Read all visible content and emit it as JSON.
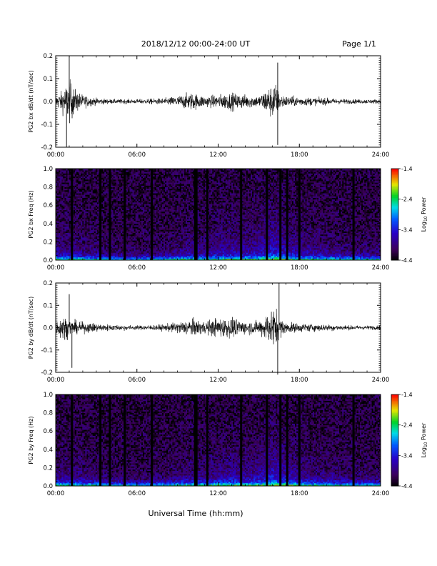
{
  "header": {
    "title": "2018/12/12  00:00-24:00 UT",
    "page": "Page 1/1"
  },
  "chart_data": [
    {
      "type": "line",
      "panel": "bx-waveform",
      "title": "",
      "ylabel": "PG2 bx dB/dt (nT/sec)",
      "xlabel": "",
      "xlim": [
        "00:00",
        "24:00"
      ],
      "ylim": [
        -0.2,
        0.2
      ],
      "xticks": [
        "00:00",
        "06:00",
        "12:00",
        "18:00",
        "24:00"
      ],
      "yticks": [
        "-0.2",
        "-0.1",
        "0.0",
        "0.1",
        "0.2"
      ],
      "x_hours": [
        0,
        0.5,
        1.0,
        1.5,
        2.0,
        3.0,
        4.0,
        6.0,
        8.0,
        9.0,
        10.0,
        11.0,
        12.0,
        13.0,
        14.0,
        15.0,
        16.2,
        16.5,
        17.0,
        18.0,
        20.0,
        22.0,
        24.0
      ],
      "amplitude_envelope": [
        0.05,
        0.1,
        0.2,
        0.1,
        0.06,
        0.03,
        0.02,
        0.02,
        0.03,
        0.05,
        0.08,
        0.05,
        0.06,
        0.08,
        0.06,
        0.05,
        0.18,
        0.08,
        0.05,
        0.04,
        0.03,
        0.02,
        0.02
      ],
      "notable_values": [
        {
          "x_hours": 1.0,
          "y": 0.2
        },
        {
          "x_hours": 0.8,
          "y": -0.2
        },
        {
          "x_hours": 16.4,
          "y": 0.17
        },
        {
          "x_hours": 16.4,
          "y": -0.19
        }
      ]
    },
    {
      "type": "heatmap",
      "panel": "bx-spectrogram",
      "title": "",
      "ylabel": "PG2 bx Freq (Hz)",
      "xlabel": "",
      "xlim": [
        "00:00",
        "24:00"
      ],
      "ylim": [
        0.0,
        1.0
      ],
      "xticks": [
        "00:00",
        "06:00",
        "12:00",
        "18:00",
        "24:00"
      ],
      "yticks": [
        "0.0",
        "0.2",
        "0.4",
        "0.6",
        "0.8",
        "1.0"
      ],
      "colorbar": {
        "label": "Log10 Power",
        "label_main": "Log",
        "label_sub": "10",
        "label_tail": " Power",
        "range": [
          -4.4,
          -1.4
        ],
        "ticks": [
          "-1.4",
          "-2.4",
          "-3.4",
          "-4.4"
        ]
      },
      "data_gaps_hours": [
        1.2,
        3.3,
        4.0,
        5.1,
        7.1,
        10.3,
        10.4,
        11.2,
        13.7,
        15.6,
        16.6,
        17.1,
        18.0,
        22.0
      ],
      "activity_envelope_hours": [
        0,
        2,
        4,
        6,
        8,
        9,
        10,
        11,
        12,
        13,
        14,
        15,
        16,
        17,
        18,
        20,
        22,
        24
      ],
      "activity_envelope": [
        0.3,
        0.25,
        0.15,
        0.12,
        0.15,
        0.25,
        0.3,
        0.28,
        0.35,
        0.4,
        0.35,
        0.4,
        0.55,
        0.45,
        0.35,
        0.25,
        0.2,
        0.18
      ]
    },
    {
      "type": "line",
      "panel": "by-waveform",
      "title": "",
      "ylabel": "PG2 by dB/dt (nT/sec)",
      "xlabel": "",
      "xlim": [
        "00:00",
        "24:00"
      ],
      "ylim": [
        -0.2,
        0.2
      ],
      "xticks": [
        "00:00",
        "06:00",
        "12:00",
        "18:00",
        "24:00"
      ],
      "yticks": [
        "-0.2",
        "-0.1",
        "0.0",
        "0.1",
        "0.2"
      ],
      "x_hours": [
        0,
        0.5,
        1.0,
        1.5,
        2.0,
        3.0,
        4.0,
        6.0,
        8.0,
        9.0,
        10.0,
        11.0,
        12.0,
        13.0,
        14.0,
        15.0,
        16.2,
        16.5,
        17.0,
        18.0,
        20.0,
        22.0,
        24.0
      ],
      "amplitude_envelope": [
        0.05,
        0.12,
        0.08,
        0.06,
        0.05,
        0.04,
        0.03,
        0.02,
        0.03,
        0.05,
        0.08,
        0.06,
        0.09,
        0.09,
        0.06,
        0.06,
        0.2,
        0.1,
        0.05,
        0.04,
        0.03,
        0.02,
        0.02
      ],
      "notable_values": [
        {
          "x_hours": 1.0,
          "y": 0.15
        },
        {
          "x_hours": 1.2,
          "y": -0.18
        },
        {
          "x_hours": 16.5,
          "y": 0.2
        },
        {
          "x_hours": 16.4,
          "y": -0.21
        }
      ]
    },
    {
      "type": "heatmap",
      "panel": "by-spectrogram",
      "title": "",
      "ylabel": "PG2 by Freq (Hz)",
      "xlabel": "Universal Time (hh:mm)",
      "xlim": [
        "00:00",
        "24:00"
      ],
      "ylim": [
        0.0,
        1.0
      ],
      "xticks": [
        "00:00",
        "06:00",
        "12:00",
        "18:00",
        "24:00"
      ],
      "yticks": [
        "0.0",
        "0.2",
        "0.4",
        "0.6",
        "0.8",
        "1.0"
      ],
      "colorbar": {
        "label": "Log10 Power",
        "label_main": "Log",
        "label_sub": "10",
        "label_tail": " Power",
        "range": [
          -4.4,
          -1.4
        ],
        "ticks": [
          "-1.4",
          "-2.4",
          "-3.4",
          "-4.4"
        ]
      },
      "data_gaps_hours": [
        1.2,
        3.3,
        4.0,
        5.1,
        7.1,
        10.3,
        10.4,
        11.2,
        13.7,
        15.6,
        16.6,
        17.1,
        18.0,
        22.0
      ],
      "activity_envelope_hours": [
        0,
        2,
        4,
        6,
        8,
        9,
        10,
        11,
        12,
        13,
        14,
        15,
        16,
        17,
        18,
        20,
        22,
        24
      ],
      "activity_envelope": [
        0.3,
        0.25,
        0.15,
        0.12,
        0.15,
        0.25,
        0.3,
        0.28,
        0.35,
        0.4,
        0.35,
        0.4,
        0.55,
        0.45,
        0.35,
        0.25,
        0.2,
        0.18
      ]
    }
  ]
}
